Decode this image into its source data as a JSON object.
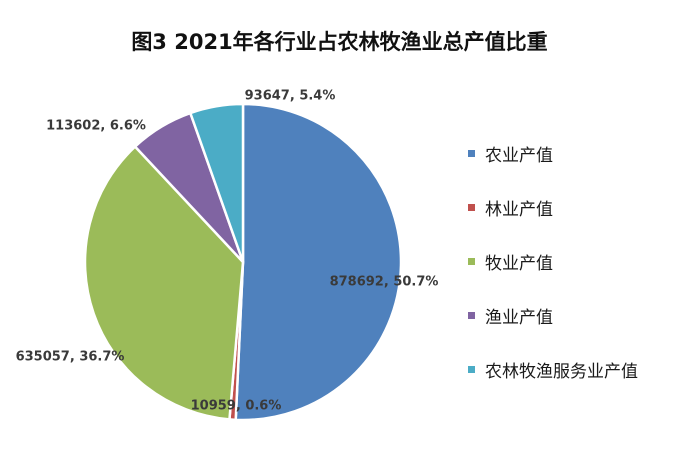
{
  "chart_data": {
    "type": "pie",
    "title": "图3  2021年各行业占农林牧渔业总产值比重",
    "slices": [
      {
        "name": "农业产值",
        "value": 878692,
        "percent": "50.7%",
        "label": "878692, 50.7%",
        "color": "#4F81BD"
      },
      {
        "name": "林业产值",
        "value": 10959,
        "percent": "0.6%",
        "label": "10959, 0.6%",
        "color": "#C0504D"
      },
      {
        "name": "牧业产值",
        "value": 635057,
        "percent": "36.7%",
        "label": "635057, 36.7%",
        "color": "#9BBB59"
      },
      {
        "name": "渔业产值",
        "value": 113602,
        "percent": "6.6%",
        "label": "113602, 6.6%",
        "color": "#8064A2"
      },
      {
        "name": "农林牧渔服务业产值",
        "value": 93647,
        "percent": "5.4%",
        "label": "93647, 5.4%",
        "color": "#4BACC6"
      }
    ],
    "legend_position": "right"
  }
}
